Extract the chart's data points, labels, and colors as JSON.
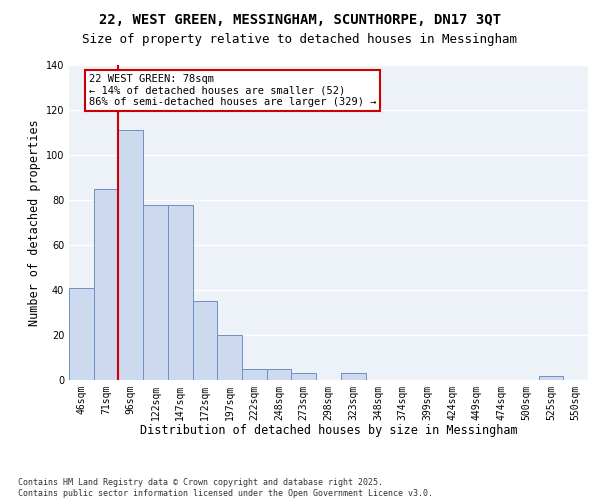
{
  "title_line1": "22, WEST GREEN, MESSINGHAM, SCUNTHORPE, DN17 3QT",
  "title_line2": "Size of property relative to detached houses in Messingham",
  "xlabel": "Distribution of detached houses by size in Messingham",
  "ylabel": "Number of detached properties",
  "categories": [
    "46sqm",
    "71sqm",
    "96sqm",
    "122sqm",
    "147sqm",
    "172sqm",
    "197sqm",
    "222sqm",
    "248sqm",
    "273sqm",
    "298sqm",
    "323sqm",
    "348sqm",
    "374sqm",
    "399sqm",
    "424sqm",
    "449sqm",
    "474sqm",
    "500sqm",
    "525sqm",
    "550sqm"
  ],
  "values": [
    41,
    85,
    111,
    78,
    78,
    35,
    20,
    5,
    5,
    3,
    0,
    3,
    0,
    0,
    0,
    0,
    0,
    0,
    0,
    2,
    0
  ],
  "bar_color": "#ccd9ee",
  "bar_edge_color": "#7090c0",
  "annotation_line1": "22 WEST GREEN: 78sqm",
  "annotation_line2": "← 14% of detached houses are smaller (52)",
  "annotation_line3": "86% of semi-detached houses are larger (329) →",
  "annotation_box_edge": "#cc0000",
  "red_line_x": 1.5,
  "ylim": [
    0,
    140
  ],
  "yticks": [
    0,
    20,
    40,
    60,
    80,
    100,
    120,
    140
  ],
  "background_color": "#edf1f8",
  "grid_color": "#d8dde8",
  "footnote": "Contains HM Land Registry data © Crown copyright and database right 2025.\nContains public sector information licensed under the Open Government Licence v3.0.",
  "title_fontsize": 10,
  "subtitle_fontsize": 9,
  "axis_label_fontsize": 8.5,
  "tick_fontsize": 7,
  "annotation_fontsize": 7.5,
  "footnote_fontsize": 6
}
